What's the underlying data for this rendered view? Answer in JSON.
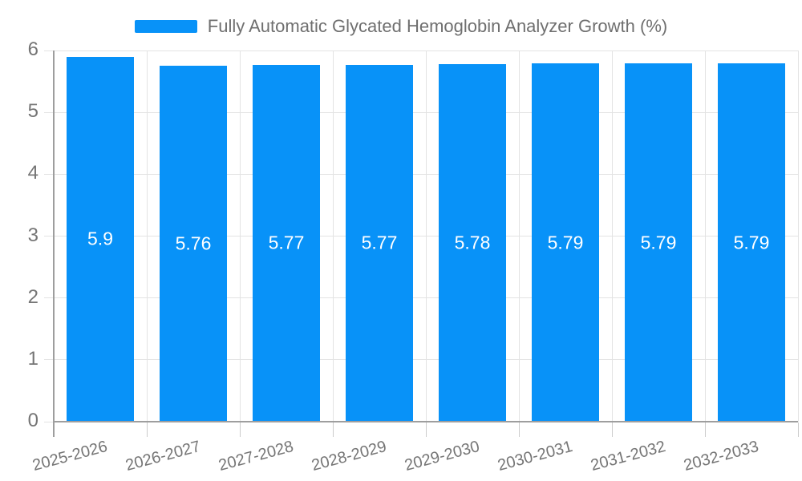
{
  "chart_data": {
    "type": "bar",
    "title": "Fully Automatic Glycated Hemoglobin Analyzer Growth (%)",
    "legend": [
      {
        "label": "Fully Automatic Glycated Hemoglobin Analyzer Growth (%)",
        "color": "#0892f8"
      }
    ],
    "legend_position": "top",
    "categories": [
      "2025-2026",
      "2026-2027",
      "2027-2028",
      "2028-2029",
      "2029-2030",
      "2030-2031",
      "2031-2032",
      "2032-2033"
    ],
    "values": [
      5.9,
      5.76,
      5.77,
      5.77,
      5.78,
      5.79,
      5.79,
      5.79
    ],
    "xlabel": "",
    "ylabel": "",
    "ylim": [
      0,
      6
    ],
    "yticks": [
      0,
      1,
      2,
      3,
      4,
      5,
      6
    ],
    "grid": true,
    "bar_label_position": "middle",
    "colors": {
      "bar": "#0892f8",
      "grid": "#e3e3e3",
      "tick_mark": "#cccccc",
      "axis": "#9e9e9e",
      "tick_label": "#757575",
      "title_text": "#6f6f6f",
      "bar_label": "#ffffff",
      "background": "#ffffff"
    }
  }
}
